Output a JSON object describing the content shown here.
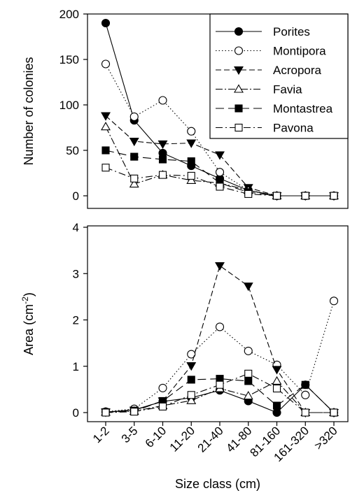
{
  "chart_data": [
    {
      "type": "line",
      "ylabel": "Number of colonies",
      "xlabel": "",
      "ylim": [
        0,
        200
      ],
      "yticks": [
        "0",
        "50",
        "100",
        "150",
        "200"
      ],
      "categories": [
        "1-2",
        "3-5",
        "6-10",
        "11-20",
        "21-40",
        "41-80",
        "81-160",
        "161-320",
        ">320"
      ],
      "legend_position": "top-right",
      "series": [
        {
          "name": "Porites",
          "values": [
            190,
            83,
            47,
            33,
            19,
            6,
            0,
            0,
            0
          ]
        },
        {
          "name": "Montipora",
          "values": [
            145,
            87,
            105,
            71,
            26,
            6,
            0,
            0,
            0
          ]
        },
        {
          "name": "Acropora",
          "values": [
            88,
            60,
            57,
            58,
            45,
            9,
            0,
            0,
            0
          ]
        },
        {
          "name": "Favia",
          "values": [
            76,
            13,
            23,
            17,
            14,
            6,
            0,
            0,
            0
          ]
        },
        {
          "name": "Montastrea",
          "values": [
            50,
            43,
            40,
            38,
            14,
            4,
            0,
            0,
            0
          ]
        },
        {
          "name": "Pavona",
          "values": [
            31,
            19,
            23,
            22,
            10,
            2,
            0,
            0,
            0
          ]
        }
      ]
    },
    {
      "type": "line",
      "ylabel": "Area (cm",
      "ylabel_sup": "-2",
      "ylabel_end": ")",
      "xlabel": "Size class (cm)",
      "ylim": [
        0,
        4
      ],
      "yticks": [
        "0",
        "1",
        "2",
        "3",
        "4"
      ],
      "categories": [
        "1-2",
        "3-5",
        "6-10",
        "11-20",
        "21-40",
        "41-80",
        "81-160",
        "161-320",
        ">320"
      ],
      "series": [
        {
          "name": "Porites",
          "values": [
            0.01,
            0.06,
            0.24,
            0.32,
            0.48,
            0.25,
            0.0,
            0.6,
            0.0
          ]
        },
        {
          "name": "Montipora",
          "values": [
            0.02,
            0.08,
            0.53,
            1.26,
            1.85,
            1.33,
            1.03,
            0.38,
            2.41
          ]
        },
        {
          "name": "Acropora",
          "values": [
            0.01,
            0.05,
            0.25,
            1.01,
            3.17,
            2.73,
            0.93,
            0.0,
            0.0
          ]
        },
        {
          "name": "Favia",
          "values": [
            0.01,
            0.03,
            0.15,
            0.26,
            0.52,
            0.36,
            0.68,
            0.0,
            0.0
          ]
        },
        {
          "name": "Montastrea",
          "values": [
            0.01,
            0.03,
            0.25,
            0.71,
            0.73,
            0.68,
            0.15,
            0.6,
            0.0
          ]
        },
        {
          "name": "Pavona",
          "values": [
            0.0,
            0.02,
            0.13,
            0.38,
            0.6,
            0.84,
            0.52,
            0.0,
            0.0
          ]
        }
      ]
    }
  ],
  "series_styles": [
    {
      "marker": "circle",
      "fill": "#000000",
      "dash": ""
    },
    {
      "marker": "circle",
      "fill": "#ffffff",
      "dash": "1.5,3"
    },
    {
      "marker": "triangle-down",
      "fill": "#000000",
      "dash": "8,4"
    },
    {
      "marker": "triangle-up",
      "fill": "#ffffff",
      "dash": "10,3,2,3"
    },
    {
      "marker": "square",
      "fill": "#000000",
      "dash": "12,6"
    },
    {
      "marker": "square",
      "fill": "#ffffff",
      "dash": "10,4,2,4"
    }
  ]
}
